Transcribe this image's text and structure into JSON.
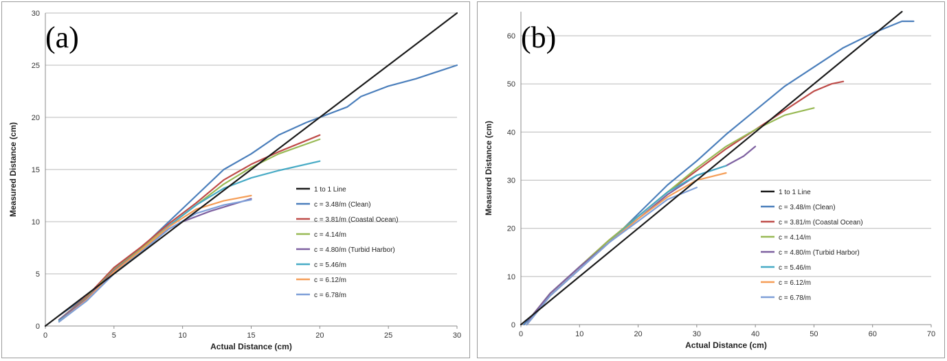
{
  "chart_data": [
    {
      "type": "line",
      "panel_label": "(a)",
      "xlabel": "Actual Distance (cm)",
      "ylabel": "Measured Distance (cm)",
      "xlim": [
        0,
        30
      ],
      "ylim": [
        0,
        30
      ],
      "xticks": [
        0,
        5,
        10,
        15,
        20,
        25,
        30
      ],
      "yticks": [
        0,
        5,
        10,
        15,
        20,
        25,
        30
      ],
      "grid": "horizontal",
      "legend": "right",
      "series": [
        {
          "name": "1 to 1 Line",
          "color": "#1a1a1a",
          "points": [
            [
              0,
              0
            ],
            [
              30,
              30
            ]
          ]
        },
        {
          "name": "c = 3.48/m (Clean)",
          "color": "#4a7ebb",
          "points": [
            [
              1,
              1
            ],
            [
              3,
              2.8
            ],
            [
              5,
              5.5
            ],
            [
              7,
              7.5
            ],
            [
              9,
              10
            ],
            [
              11,
              12.5
            ],
            [
              13,
              15
            ],
            [
              15,
              16.5
            ],
            [
              17,
              18.3
            ],
            [
              19,
              19.5
            ],
            [
              20,
              20
            ],
            [
              22,
              21
            ],
            [
              23,
              22
            ],
            [
              25,
              23
            ],
            [
              27,
              23.7
            ],
            [
              30,
              25
            ]
          ]
        },
        {
          "name": "c = 3.81/m (Coastal Ocean)",
          "color": "#be4b48",
          "points": [
            [
              1,
              0.6
            ],
            [
              3,
              2.8
            ],
            [
              5,
              5.6
            ],
            [
              7,
              7.6
            ],
            [
              9,
              9.8
            ],
            [
              11,
              11.8
            ],
            [
              13,
              14
            ],
            [
              15,
              15.5
            ],
            [
              17,
              16.7
            ],
            [
              20,
              18.3
            ]
          ]
        },
        {
          "name": "c = 4.14/m",
          "color": "#98b954",
          "points": [
            [
              1,
              0.6
            ],
            [
              3,
              2.7
            ],
            [
              5,
              5.4
            ],
            [
              7,
              7.4
            ],
            [
              9,
              9.6
            ],
            [
              11,
              11.6
            ],
            [
              13,
              13.6
            ],
            [
              15,
              15.2
            ],
            [
              17,
              16.5
            ],
            [
              20,
              17.9
            ]
          ]
        },
        {
          "name": "c = 4.80/m (Turbid Harbor)",
          "color": "#7d60a0",
          "points": [
            [
              1,
              0.6
            ],
            [
              3,
              2.6
            ],
            [
              5,
              5.3
            ],
            [
              7,
              7.3
            ],
            [
              9,
              9.3
            ],
            [
              10,
              10
            ],
            [
              12,
              11
            ],
            [
              15,
              12.2
            ]
          ]
        },
        {
          "name": "c = 5.46/m",
          "color": "#46aac5",
          "points": [
            [
              1,
              0.5
            ],
            [
              3,
              2.4
            ],
            [
              5,
              5.1
            ],
            [
              7,
              7.1
            ],
            [
              9,
              9.6
            ],
            [
              11,
              11.6
            ],
            [
              13,
              13.2
            ],
            [
              15,
              14.2
            ],
            [
              17,
              14.9
            ],
            [
              20,
              15.8
            ]
          ]
        },
        {
          "name": "c = 6.12/m",
          "color": "#f59d56",
          "points": [
            [
              1,
              0.4
            ],
            [
              3,
              2.5
            ],
            [
              5,
              5.2
            ],
            [
              7,
              7.3
            ],
            [
              9,
              9.5
            ],
            [
              11,
              11.2
            ],
            [
              13,
              12
            ],
            [
              15,
              12.5
            ]
          ]
        },
        {
          "name": "c = 6.78/m",
          "color": "#7e9fd8",
          "points": [
            [
              1,
              0.4
            ],
            [
              3,
              2.4
            ],
            [
              5,
              5
            ],
            [
              7,
              7.1
            ],
            [
              9,
              9.3
            ],
            [
              11,
              10.8
            ],
            [
              13,
              11.6
            ],
            [
              15,
              12.1
            ]
          ]
        }
      ]
    },
    {
      "type": "line",
      "panel_label": "(b)",
      "xlabel": "Actual Distance (cm)",
      "ylabel": "Measured Distance (cm)",
      "xlim": [
        0,
        70
      ],
      "ylim": [
        0,
        65
      ],
      "xticks": [
        0,
        10,
        20,
        30,
        40,
        50,
        60,
        70
      ],
      "yticks": [
        0,
        10,
        20,
        30,
        40,
        50,
        60
      ],
      "grid": "horizontal",
      "legend": "right",
      "series": [
        {
          "name": "1 to 1 Line",
          "color": "#1a1a1a",
          "points": [
            [
              0,
              0
            ],
            [
              65,
              65
            ]
          ]
        },
        {
          "name": "c = 3.48/m (Clean)",
          "color": "#4a7ebb",
          "points": [
            [
              0.5,
              0
            ],
            [
              2,
              2
            ],
            [
              5,
              6
            ],
            [
              10,
              11.5
            ],
            [
              15,
              17
            ],
            [
              20,
              23
            ],
            [
              25,
              29
            ],
            [
              30,
              34
            ],
            [
              35,
              39.5
            ],
            [
              40,
              44.5
            ],
            [
              45,
              49.5
            ],
            [
              50,
              53.5
            ],
            [
              55,
              57.5
            ],
            [
              60,
              60.5
            ],
            [
              63,
              62
            ],
            [
              65,
              63
            ],
            [
              67,
              63
            ]
          ]
        },
        {
          "name": "c = 3.81/m (Coastal Ocean)",
          "color": "#be4b48",
          "points": [
            [
              1,
              0
            ],
            [
              2,
              2
            ],
            [
              5,
              6.5
            ],
            [
              10,
              12
            ],
            [
              15,
              17.5
            ],
            [
              20,
              22.5
            ],
            [
              25,
              27.5
            ],
            [
              30,
              32
            ],
            [
              35,
              36.5
            ],
            [
              40,
              40.5
            ],
            [
              45,
              44.5
            ],
            [
              50,
              48.5
            ],
            [
              53,
              50
            ],
            [
              55,
              50.5
            ]
          ]
        },
        {
          "name": "c = 4.14/m",
          "color": "#98b954",
          "points": [
            [
              1,
              0
            ],
            [
              2,
              2
            ],
            [
              5,
              6.5
            ],
            [
              10,
              12
            ],
            [
              15,
              17.5
            ],
            [
              20,
              22.5
            ],
            [
              25,
              27.5
            ],
            [
              30,
              32.5
            ],
            [
              35,
              37
            ],
            [
              40,
              40.5
            ],
            [
              45,
              43.5
            ],
            [
              50,
              45
            ]
          ]
        },
        {
          "name": "c = 4.80/m (Turbid Harbor)",
          "color": "#7d60a0",
          "points": [
            [
              1,
              0
            ],
            [
              2,
              2
            ],
            [
              5,
              6.5
            ],
            [
              10,
              12
            ],
            [
              15,
              17
            ],
            [
              20,
              22
            ],
            [
              25,
              27
            ],
            [
              30,
              31
            ],
            [
              35,
              33
            ],
            [
              38,
              35
            ],
            [
              40,
              37
            ]
          ]
        },
        {
          "name": "c = 5.46/m",
          "color": "#46aac5",
          "points": [
            [
              1,
              0
            ],
            [
              2,
              1.5
            ],
            [
              5,
              6
            ],
            [
              10,
              11.5
            ],
            [
              15,
              17
            ],
            [
              20,
              22.5
            ],
            [
              25,
              27.5
            ],
            [
              30,
              31
            ],
            [
              35,
              33
            ]
          ]
        },
        {
          "name": "c = 6.12/m",
          "color": "#f59d56",
          "points": [
            [
              1,
              0
            ],
            [
              2,
              1.5
            ],
            [
              5,
              6
            ],
            [
              10,
              11.5
            ],
            [
              15,
              17
            ],
            [
              20,
              22
            ],
            [
              25,
              26.5
            ],
            [
              30,
              30
            ],
            [
              35,
              31.5
            ]
          ]
        },
        {
          "name": "c = 6.78/m",
          "color": "#7e9fd8",
          "points": [
            [
              1,
              0
            ],
            [
              2,
              1.5
            ],
            [
              5,
              6
            ],
            [
              10,
              11.5
            ],
            [
              15,
              17
            ],
            [
              20,
              21.5
            ],
            [
              25,
              26
            ],
            [
              28,
              27.5
            ],
            [
              30,
              28.5
            ]
          ]
        }
      ]
    }
  ]
}
